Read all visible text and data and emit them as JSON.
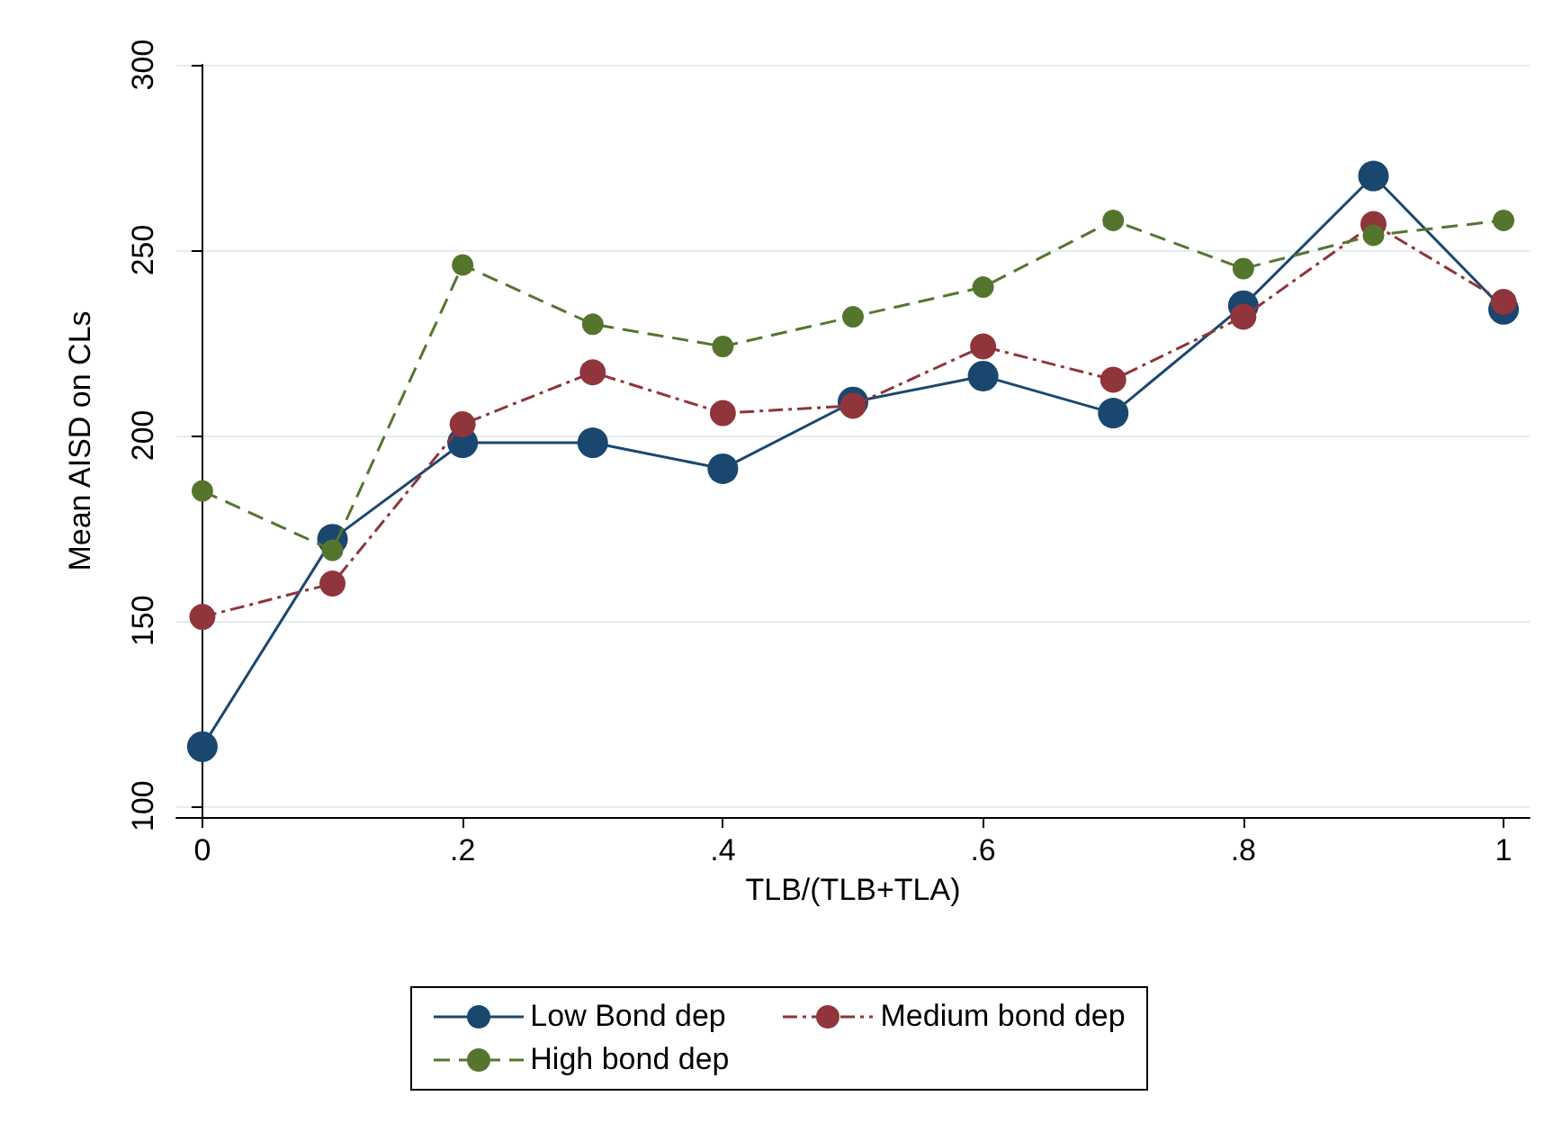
{
  "chart_data": {
    "type": "line",
    "xlabel": "TLB/(TLB+TLA)",
    "ylabel": "Mean AISD on CLs",
    "x": [
      0,
      0.1,
      0.2,
      0.3,
      0.4,
      0.5,
      0.6,
      0.7,
      0.8,
      0.9,
      1
    ],
    "series": [
      {
        "name": "Low Bond dep",
        "color": "#1a476f",
        "line_style": "solid",
        "values": [
          116,
          172,
          198,
          198,
          191,
          209,
          216,
          206,
          235,
          270,
          234
        ]
      },
      {
        "name": "Medium bond dep",
        "color": "#90353b",
        "line_style": "dashdot",
        "values": [
          151,
          160,
          203,
          217,
          206,
          208,
          224,
          215,
          232,
          257,
          236
        ]
      },
      {
        "name": "High bond dep",
        "color": "#55752f",
        "line_style": "dashed",
        "values": [
          185,
          169,
          246,
          230,
          224,
          232,
          240,
          258,
          245,
          254,
          258
        ]
      }
    ],
    "xlim": [
      -0.02,
      1.02
    ],
    "xticks": [
      0,
      {
        "value": 0.2,
        "label": ".2"
      },
      {
        "value": 0.4,
        "label": ".4"
      },
      {
        "value": 0.6,
        "label": ".6"
      },
      {
        "value": 0.8,
        "label": ".8"
      },
      1
    ],
    "ylim": [
      97,
      300
    ],
    "yticks": [
      100,
      150,
      200,
      250,
      300
    ],
    "grid": "y",
    "legend": "bottom",
    "marker": "circle"
  }
}
